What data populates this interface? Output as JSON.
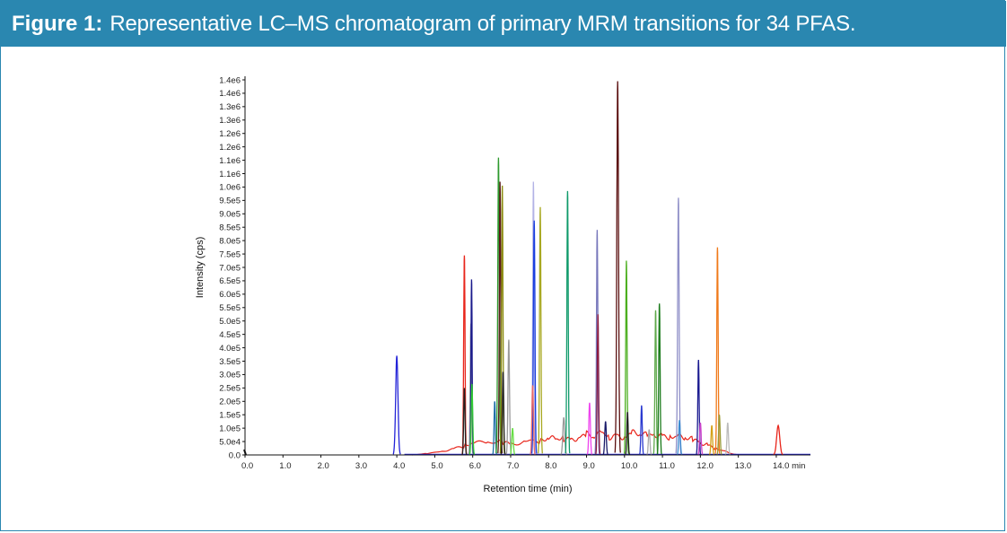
{
  "figure": {
    "label": "Figure 1:",
    "caption": "Representative LC–MS chromatogram of primary MRM transitions for 34 PFAS."
  },
  "colors": {
    "accent": "#2a87b0"
  },
  "chart_data": {
    "type": "line",
    "title": "Representative LC–MS chromatogram of primary MRM transitions for 34 PFAS.",
    "xlabel": "Retention time (min)",
    "ylabel": "Intensity (cps)",
    "xlim": [
      0.0,
      14.9
    ],
    "ylim": [
      0,
      1400000
    ],
    "x_ticks": [
      "0.0",
      "1.0",
      "2.0",
      "3.0",
      "4.0",
      "5.0",
      "6.0",
      "7.0",
      "8.0",
      "9.0",
      "10.0",
      "11.0",
      "12.0",
      "13.0",
      "14.0 min"
    ],
    "y_ticks": [
      "0.0",
      "5.0e4",
      "1.0e5",
      "1.5e5",
      "2.0e5",
      "2.5e5",
      "3.0e5",
      "3.5e5",
      "4.0e5",
      "4.5e5",
      "5.0e5",
      "5.5e5",
      "6.0e5",
      "6.5e5",
      "7.0e5",
      "7.5e5",
      "8.0e5",
      "8.5e5",
      "9.0e5",
      "9.5e5",
      "1.0e6",
      "1.1e6",
      "1.1e6",
      "1.2e6",
      "1.2e6",
      "1.3e6",
      "1.3e6",
      "1.4e6",
      "1.4e6"
    ],
    "peaks": [
      {
        "rt": 4.0,
        "height": 370000,
        "width": 0.06,
        "color": "#2323d8"
      },
      {
        "rt": 5.78,
        "height": 745000,
        "width": 0.035,
        "color": "#e8261c"
      },
      {
        "rt": 5.78,
        "height": 250000,
        "width": 0.035,
        "color": "#222222"
      },
      {
        "rt": 5.95,
        "height": 490000,
        "width": 0.035,
        "color": "#a9a9a9"
      },
      {
        "rt": 5.97,
        "height": 655000,
        "width": 0.03,
        "color": "#1a1a8c"
      },
      {
        "rt": 5.98,
        "height": 265000,
        "width": 0.04,
        "color": "#33cc33"
      },
      {
        "rt": 6.58,
        "height": 200000,
        "width": 0.035,
        "color": "#1f6fa8"
      },
      {
        "rt": 6.68,
        "height": 1110000,
        "width": 0.04,
        "color": "#2e9a2e"
      },
      {
        "rt": 6.72,
        "height": 1020000,
        "width": 0.035,
        "color": "#5c1a1a"
      },
      {
        "rt": 6.78,
        "height": 1005000,
        "width": 0.035,
        "color": "#8b8b10"
      },
      {
        "rt": 6.8,
        "height": 310000,
        "width": 0.035,
        "color": "#222222"
      },
      {
        "rt": 6.95,
        "height": 430000,
        "width": 0.04,
        "color": "#9a9a9a"
      },
      {
        "rt": 7.05,
        "height": 100000,
        "width": 0.04,
        "color": "#66dd44"
      },
      {
        "rt": 7.6,
        "height": 1020000,
        "width": 0.035,
        "color": "#b3b3e6"
      },
      {
        "rt": 7.62,
        "height": 875000,
        "width": 0.04,
        "color": "#1a3fe0"
      },
      {
        "rt": 7.58,
        "height": 260000,
        "width": 0.04,
        "color": "#e86a6a"
      },
      {
        "rt": 7.78,
        "height": 925000,
        "width": 0.035,
        "color": "#a8a820"
      },
      {
        "rt": 8.4,
        "height": 140000,
        "width": 0.05,
        "color": "#999999"
      },
      {
        "rt": 8.5,
        "height": 985000,
        "width": 0.035,
        "color": "#0f9a6a"
      },
      {
        "rt": 9.08,
        "height": 195000,
        "width": 0.04,
        "color": "#ee44ee"
      },
      {
        "rt": 9.28,
        "height": 840000,
        "width": 0.035,
        "color": "#7777bb"
      },
      {
        "rt": 9.3,
        "height": 525000,
        "width": 0.035,
        "color": "#8b1a40"
      },
      {
        "rt": 9.5,
        "height": 125000,
        "width": 0.04,
        "color": "#1a1a6a"
      },
      {
        "rt": 9.82,
        "height": 1395000,
        "width": 0.045,
        "color": "#5a0f0f"
      },
      {
        "rt": 10.05,
        "height": 725000,
        "width": 0.035,
        "color": "#4caf1f"
      },
      {
        "rt": 10.08,
        "height": 160000,
        "width": 0.035,
        "color": "#222222"
      },
      {
        "rt": 10.45,
        "height": 185000,
        "width": 0.035,
        "color": "#2a3ad0"
      },
      {
        "rt": 10.65,
        "height": 95000,
        "width": 0.04,
        "color": "#aaaaaa"
      },
      {
        "rt": 10.82,
        "height": 540000,
        "width": 0.035,
        "color": "#5fa94b"
      },
      {
        "rt": 10.92,
        "height": 565000,
        "width": 0.035,
        "color": "#1a7a1a"
      },
      {
        "rt": 11.42,
        "height": 960000,
        "width": 0.04,
        "color": "#9090c8"
      },
      {
        "rt": 11.45,
        "height": 130000,
        "width": 0.04,
        "color": "#3a8ad0"
      },
      {
        "rt": 11.95,
        "height": 355000,
        "width": 0.035,
        "color": "#1a1a90"
      },
      {
        "rt": 12.0,
        "height": 120000,
        "width": 0.04,
        "color": "#cc44cc"
      },
      {
        "rt": 12.3,
        "height": 110000,
        "width": 0.04,
        "color": "#d4a017"
      },
      {
        "rt": 12.45,
        "height": 775000,
        "width": 0.035,
        "color": "#f07a1a"
      },
      {
        "rt": 12.5,
        "height": 150000,
        "width": 0.04,
        "color": "#999933"
      },
      {
        "rt": 12.72,
        "height": 120000,
        "width": 0.04,
        "color": "#bbbbbb"
      },
      {
        "rt": 14.05,
        "height": 110000,
        "width": 0.08,
        "color": "#e8261c"
      }
    ],
    "baseline_trace": {
      "color": "#e8261c",
      "x": [
        4.4,
        4.8,
        5.2,
        5.5,
        5.8,
        6.0,
        6.4,
        6.8,
        7.0,
        7.4,
        7.8,
        8.0,
        8.2,
        8.4,
        8.6,
        8.8,
        9.0,
        9.2,
        9.4,
        9.6,
        9.8,
        10.0,
        10.2,
        10.4,
        10.6,
        10.8,
        11.0,
        11.2,
        11.4,
        11.6,
        11.8,
        12.0,
        12.2,
        12.4,
        12.6,
        12.8,
        13.0
      ],
      "y": [
        0,
        5000,
        15000,
        25000,
        35000,
        40000,
        45000,
        50000,
        45000,
        55000,
        50000,
        60000,
        55000,
        65000,
        60000,
        70000,
        75000,
        65000,
        80000,
        70000,
        75000,
        70000,
        80000,
        75000,
        70000,
        80000,
        75000,
        70000,
        65000,
        60000,
        55000,
        50000,
        40000,
        25000,
        15000,
        5000,
        0
      ]
    }
  }
}
